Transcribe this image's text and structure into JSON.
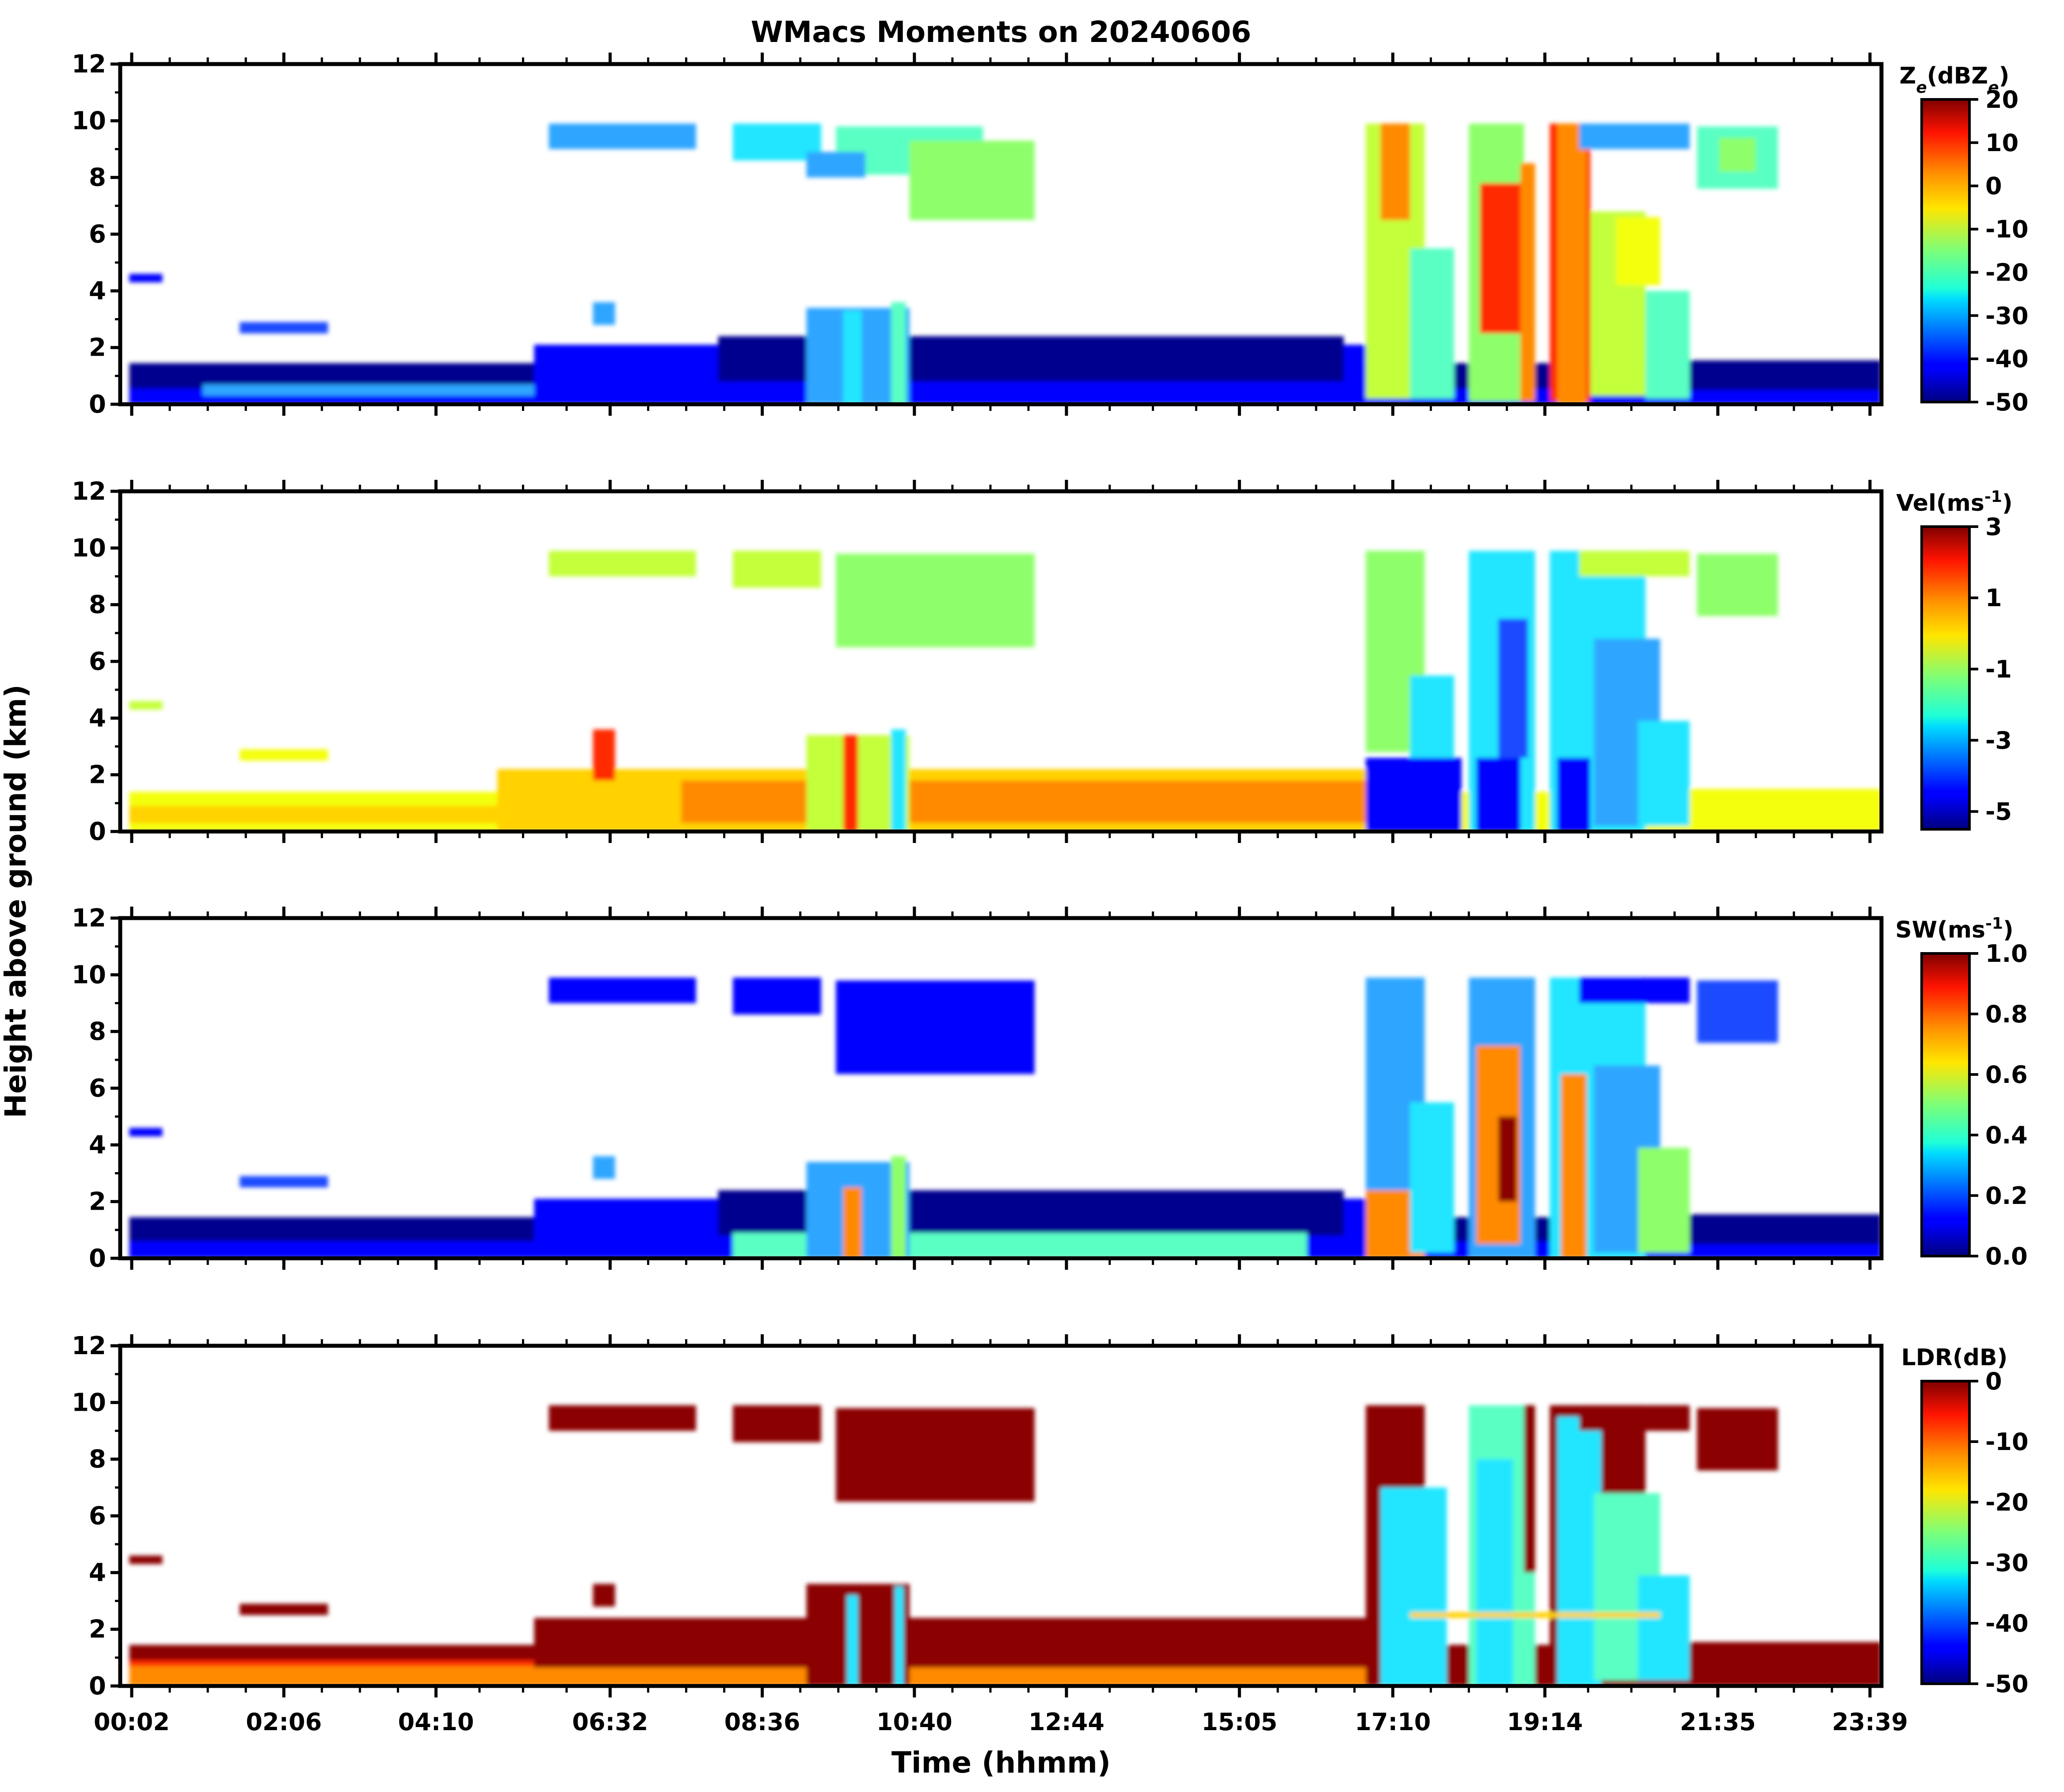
{
  "figure": {
    "title": "WMacs Moments on 20240606",
    "shared_ylabel": "Height above ground (km)",
    "shared_xlabel": "Time (hhmm)"
  },
  "chart_data": [
    {
      "type": "heatmap",
      "title": "WMacs Moments on 20240606",
      "panel": "reflectivity",
      "colorbar_label": "Ze(dBZe)",
      "colorbar_label_parts": {
        "base": "Z",
        "sub": "e",
        "mid": "(dBZ",
        "sub2": "e",
        "tail": ")"
      },
      "colorbar_ticks": [
        "20",
        "10",
        "0",
        "-10",
        "-20",
        "-30",
        "-40",
        "-50"
      ],
      "crange": [
        -50,
        20
      ],
      "colormap": "jet",
      "xlabel": "Time (hhmm)",
      "ylabel": "Height above ground (km)",
      "yticks": [
        "0",
        "2",
        "4",
        "6",
        "8",
        "10",
        "12"
      ],
      "ylim": [
        0,
        12
      ],
      "xticks": [
        "00:02",
        "02:06",
        "04:10",
        "06:32",
        "08:36",
        "10:40",
        "12:44",
        "15:05",
        "17:10",
        "19:14",
        "21:35",
        "23:39"
      ],
      "xlim_hours": [
        0.033,
        23.65
      ]
    },
    {
      "type": "heatmap",
      "panel": "velocity",
      "colorbar_label": "Vel(ms-1)",
      "colorbar_label_parts": {
        "base": "Vel(ms",
        "sup": "-1",
        "tail": ")"
      },
      "colorbar_ticks": [
        "3",
        "1",
        "-1",
        "-3",
        "-5"
      ],
      "crange": [
        -5.5,
        3
      ],
      "colormap": "jet",
      "yticks": [
        "0",
        "2",
        "4",
        "6",
        "8",
        "10",
        "12"
      ],
      "ylim": [
        0,
        12
      ]
    },
    {
      "type": "heatmap",
      "panel": "spectrum_width",
      "colorbar_label": "SW(ms-1)",
      "colorbar_label_parts": {
        "base": "SW(ms",
        "sup": "-1",
        "tail": ")"
      },
      "colorbar_ticks": [
        "1.0",
        "0.8",
        "0.6",
        "0.4",
        "0.2",
        "0.0"
      ],
      "crange": [
        0,
        1
      ],
      "colormap": "jet",
      "yticks": [
        "0",
        "2",
        "4",
        "6",
        "8",
        "10",
        "12"
      ],
      "ylim": [
        0,
        12
      ]
    },
    {
      "type": "heatmap",
      "panel": "ldr",
      "colorbar_label": "LDR(dB)",
      "colorbar_label_parts": {
        "base": "LDR(dB)"
      },
      "colorbar_ticks": [
        "0",
        "-10",
        "-20",
        "-30",
        "-40",
        "-50"
      ],
      "crange": [
        -50,
        0
      ],
      "colormap": "jet",
      "yticks": [
        "0",
        "2",
        "4",
        "6",
        "8",
        "10",
        "12"
      ],
      "ylim": [
        0,
        12
      ],
      "xticks": [
        "00:02",
        "02:06",
        "04:10",
        "06:32",
        "08:36",
        "10:40",
        "12:44",
        "15:05",
        "17:10",
        "19:14",
        "21:35",
        "23:39"
      ],
      "xlabel": "Time (hhmm)"
    }
  ]
}
